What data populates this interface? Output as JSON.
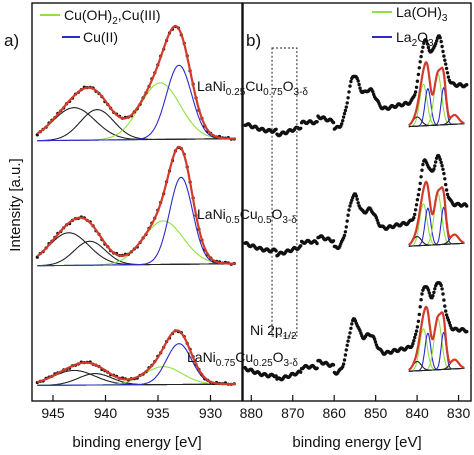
{
  "chart_data": [
    {
      "panel": "a)",
      "type": "line",
      "xlabel": "binding energy [eV]",
      "ylabel": "Intensity [a.u.]",
      "xlim": [
        947,
        927
      ],
      "x_reversed": true,
      "xticks": [
        945,
        940,
        935,
        930
      ],
      "legend": {
        "placement": "top-right",
        "entries": [
          {
            "label": "Cu(OH)2,Cu(III)",
            "color": "#90e040"
          },
          {
            "label": "Cu(II)",
            "color": "#2a2ad0"
          }
        ]
      },
      "spectra": [
        {
          "sample": "",
          "offset": 2.3,
          "scale": 1.0,
          "peaks": [
            [
              943.0,
              0.3,
              2.0
            ],
            [
              940.8,
              0.28,
              1.6
            ],
            [
              934.8,
              0.52,
              1.9
            ],
            [
              933.0,
              0.68,
              1.2
            ]
          ],
          "base": [
            0.0,
            0.025,
            947
          ]
        },
        {
          "sample": "",
          "offset": 1.15,
          "scale": 1.0,
          "peaks": [
            [
              943.5,
              0.3,
              1.9
            ],
            [
              941.5,
              0.22,
              1.5
            ],
            [
              934.5,
              0.4,
              1.9
            ],
            [
              932.8,
              0.8,
              1.1
            ]
          ],
          "base": [
            0.0,
            0.025,
            947
          ]
        },
        {
          "sample": "",
          "offset": 0.05,
          "scale": 0.75,
          "peaks": [
            [
              943.0,
              0.18,
              2.0
            ],
            [
              941.0,
              0.14,
              1.6
            ],
            [
              934.5,
              0.22,
              1.8
            ],
            [
              933.0,
              0.5,
              1.2
            ]
          ],
          "base": [
            0.0,
            0.015,
            947
          ]
        }
      ],
      "series": [
        {
          "name": "Cu(OH)2,Cu(III)",
          "color": "#90e040"
        },
        {
          "name": "Cu(II)",
          "color": "#2a2ad0"
        }
      ]
    },
    {
      "panel": "b)",
      "type": "line",
      "xlabel": "binding energy [eV]",
      "xlim": [
        882,
        827
      ],
      "x_reversed": true,
      "xticks": [
        880,
        870,
        860,
        850,
        840,
        830
      ],
      "legend": {
        "placement": "top-right",
        "entries": [
          {
            "label": "La(OH)3",
            "color": "#90e040"
          },
          {
            "label": "La2O3",
            "color": "#2a2ad0"
          }
        ]
      },
      "highlight_region": {
        "x": [
          875,
          869
        ],
        "label": "Ni 2p1/2"
      },
      "spectra": [
        {
          "sample": "LaNi0.25Cu0.75O3-δ",
          "offset": 2.35,
          "scale": 0.85
        },
        {
          "sample": "LaNi0.5Cu0.5O3-δ",
          "offset": 1.25,
          "scale": 0.85
        },
        {
          "sample": "LaNi0.75Cu0.25O3-δ",
          "offset": 0.1,
          "scale": 0.85
        }
      ],
      "series": [
        {
          "name": "La(OH)3",
          "color": "#90e040"
        },
        {
          "name": "La2O3",
          "color": "#2a2ad0"
        }
      ]
    }
  ],
  "labels": {
    "panel_a": "a)",
    "panel_b": "b)",
    "ylabel": "Intensity [a.u.]",
    "xlabel_a": "binding energy [eV]",
    "xlabel_b": "binding energy [eV]",
    "legend_a_1": {
      "main": "Cu(OH)",
      "sub": "2",
      "tail": ",Cu(III)"
    },
    "legend_a_2": "Cu(II)",
    "legend_b_1": {
      "main": "La(OH)",
      "sub": "3"
    },
    "legend_b_2": {
      "main": "La",
      "sub": "2",
      "mid": "O",
      "sub2": "3"
    },
    "ni_label": {
      "main": "Ni 2p",
      "sub": "1/2"
    },
    "samples": [
      {
        "a": "LaNi",
        "b": "0.25",
        "c": "Cu",
        "d": "0.75",
        "e": "O",
        "f": "3-δ"
      },
      {
        "a": "LaNi",
        "b": "0.5",
        "c": "Cu",
        "d": "0.5",
        "e": "O",
        "f": "3-δ"
      },
      {
        "a": "LaNi",
        "b": "0.75",
        "c": "Cu",
        "d": "0.25",
        "e": "O",
        "f": "3-δ"
      }
    ]
  }
}
